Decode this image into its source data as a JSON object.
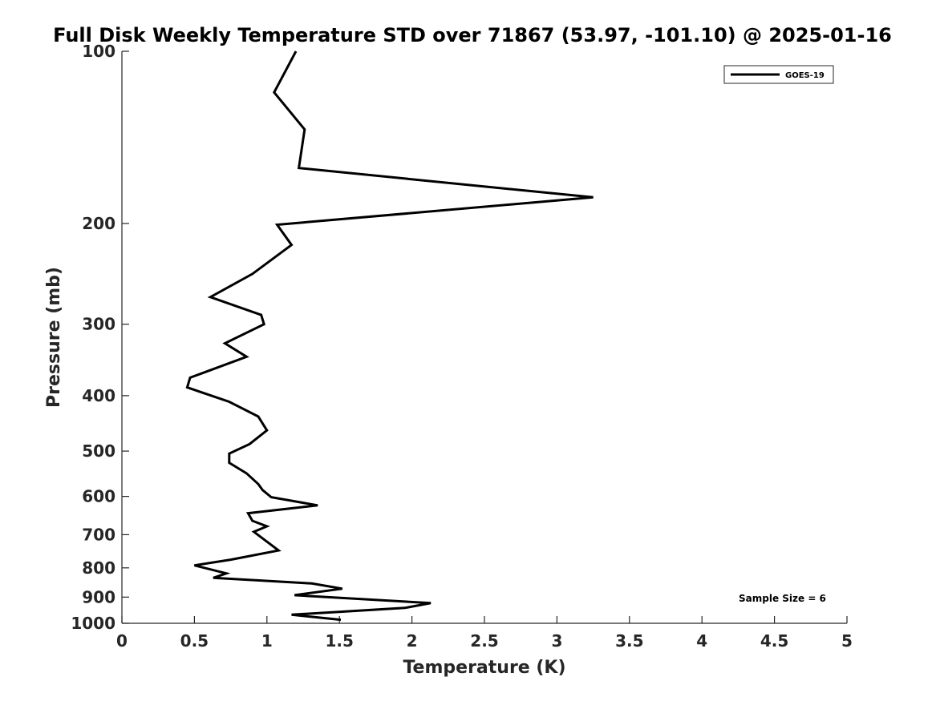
{
  "chart_data": {
    "type": "line",
    "title": "Full Disk Weekly Temperature STD over 71867 (53.97, -101.10) @ 2025-01-16",
    "xlabel": "Temperature (K)",
    "ylabel": "Pressure (mb)",
    "xlim": [
      0,
      5
    ],
    "ylim": [
      100,
      1000
    ],
    "yscale": "log",
    "y_reversed": true,
    "x_ticks": [
      0,
      0.5,
      1,
      1.5,
      2,
      2.5,
      3,
      3.5,
      4,
      4.5,
      5
    ],
    "x_tick_labels": [
      "0",
      "0.5",
      "1",
      "1.5",
      "2",
      "2.5",
      "3",
      "3.5",
      "4",
      "4.5",
      "5"
    ],
    "y_ticks": [
      100,
      200,
      300,
      400,
      500,
      600,
      700,
      800,
      900,
      1000
    ],
    "y_tick_labels": [
      "100",
      "200",
      "300",
      "400",
      "500",
      "600",
      "700",
      "800",
      "900",
      "1000"
    ],
    "grid": false,
    "legend_position": "top-right",
    "annotation": "Sample Size = 6",
    "series": [
      {
        "name": "GOES-19",
        "color": "#000000",
        "points": [
          [
            1.2,
            100
          ],
          [
            1.05,
            118
          ],
          [
            1.26,
            137
          ],
          [
            1.22,
            160
          ],
          [
            3.25,
            180
          ],
          [
            1.07,
            201
          ],
          [
            1.17,
            218
          ],
          [
            0.9,
            245
          ],
          [
            0.61,
            269
          ],
          [
            0.96,
            289
          ],
          [
            0.98,
            300
          ],
          [
            0.71,
            324
          ],
          [
            0.86,
            342
          ],
          [
            0.47,
            372
          ],
          [
            0.45,
            387
          ],
          [
            0.74,
            410
          ],
          [
            0.94,
            435
          ],
          [
            1.0,
            460
          ],
          [
            0.88,
            486
          ],
          [
            0.74,
            505
          ],
          [
            0.74,
            524
          ],
          [
            0.86,
            547
          ],
          [
            0.94,
            571
          ],
          [
            0.97,
            585
          ],
          [
            1.03,
            602
          ],
          [
            1.35,
            622
          ],
          [
            0.87,
            642
          ],
          [
            0.9,
            662
          ],
          [
            1.0,
            677
          ],
          [
            0.91,
            692
          ],
          [
            1.08,
            746
          ],
          [
            0.75,
            774
          ],
          [
            0.5,
            792
          ],
          [
            0.72,
            818
          ],
          [
            0.63,
            833
          ],
          [
            1.31,
            852
          ],
          [
            1.52,
            870
          ],
          [
            1.19,
            893
          ],
          [
            2.13,
            922
          ],
          [
            1.95,
            940
          ],
          [
            1.17,
            966
          ],
          [
            1.51,
            986
          ]
        ]
      }
    ]
  }
}
